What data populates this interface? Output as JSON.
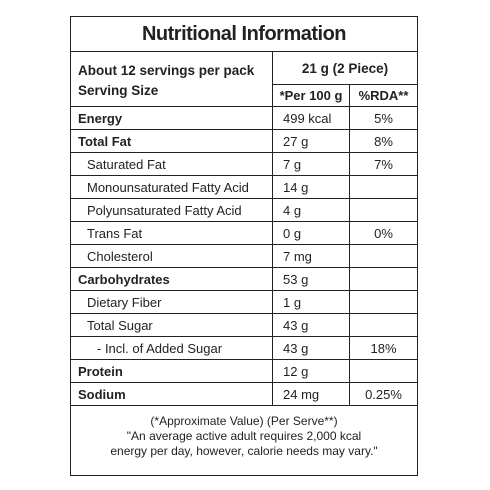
{
  "title": "Nutritional Information",
  "header": {
    "servings_per_pack": "About 12 servings per pack",
    "serving_size_label": "Serving Size",
    "serving_size_value": "21 g (2 Piece)",
    "col_per100": "*Per 100 g",
    "col_rda": "%RDA**"
  },
  "rows": [
    {
      "name": "Energy",
      "per100": "499 kcal",
      "rda": "5%"
    },
    {
      "name": "Total Fat",
      "per100": "27 g",
      "rda": "8%"
    },
    {
      "name": "Saturated Fat",
      "per100": "7 g",
      "rda": "7%"
    },
    {
      "name": "Monounsaturated Fatty Acid",
      "per100": "14 g",
      "rda": ""
    },
    {
      "name": "Polyunsaturated Fatty Acid",
      "per100": "4 g",
      "rda": ""
    },
    {
      "name": "Trans Fat",
      "per100": "0 g",
      "rda": "0%"
    },
    {
      "name": "Cholesterol",
      "per100": "7 mg",
      "rda": ""
    },
    {
      "name": "Carbohydrates",
      "per100": "53 g",
      "rda": ""
    },
    {
      "name": "Dietary Fiber",
      "per100": "1 g",
      "rda": ""
    },
    {
      "name": "Total Sugar",
      "per100": "43 g",
      "rda": ""
    },
    {
      "name": "- Incl. of Added Sugar",
      "per100": "43 g",
      "rda": "18%"
    },
    {
      "name": "Protein",
      "per100": "12 g",
      "rda": ""
    },
    {
      "name": "Sodium",
      "per100": "24 mg",
      "rda": "0.25%"
    }
  ],
  "footer": {
    "line1": "(*Approximate Value) (Per Serve**)",
    "line2": "\"An average active adult requires 2,000 kcal",
    "line3": "energy per day, however, calorie needs may vary.\""
  }
}
